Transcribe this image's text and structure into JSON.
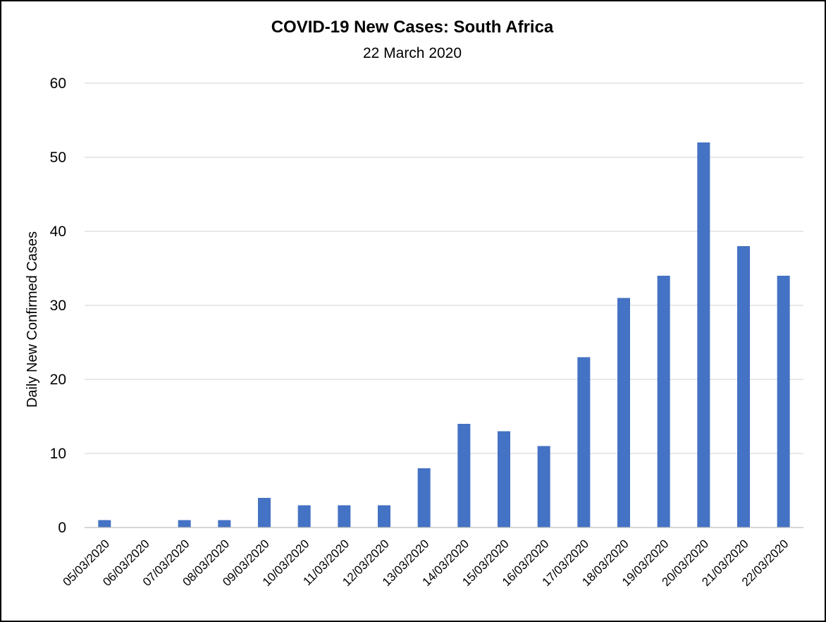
{
  "chart_data": {
    "type": "bar",
    "title": "COVID-19 New Cases: South Africa",
    "subtitle": "22 March 2020",
    "xlabel": "",
    "ylabel": "Daily New Confirmed Cases",
    "ylim": [
      0,
      60
    ],
    "yticks": [
      0,
      10,
      20,
      30,
      40,
      50,
      60
    ],
    "grid": true,
    "legend": "none",
    "bar_color": "#4472c4",
    "categories": [
      "05/03/2020",
      "06/03/2020",
      "07/03/2020",
      "08/03/2020",
      "09/03/2020",
      "10/03/2020",
      "11/03/2020",
      "12/03/2020",
      "13/03/2020",
      "14/03/2020",
      "15/03/2020",
      "16/03/2020",
      "17/03/2020",
      "18/03/2020",
      "19/03/2020",
      "20/03/2020",
      "21/03/2020",
      "22/03/2020"
    ],
    "values": [
      1,
      0,
      1,
      1,
      4,
      3,
      3,
      3,
      8,
      14,
      13,
      11,
      23,
      31,
      34,
      52,
      38,
      34
    ]
  }
}
